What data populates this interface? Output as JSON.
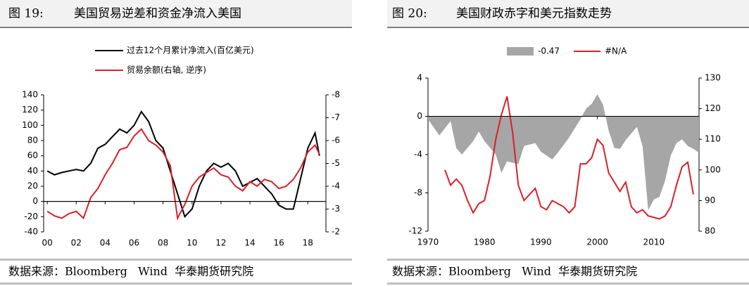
{
  "chart_data": [
    {
      "type": "line",
      "label": "图 19:",
      "title": "美国贸易逆差和资金净流入美国",
      "source": "数据来源：Bloomberg   Wind  华泰期货研究院",
      "xlim": [
        1999.75,
        2019.25
      ],
      "xticks": [
        {
          "value": 2000,
          "label": "00"
        },
        {
          "value": 2002,
          "label": "02"
        },
        {
          "value": 2004,
          "label": "04"
        },
        {
          "value": 2006,
          "label": "06"
        },
        {
          "value": 2008,
          "label": "08"
        },
        {
          "value": 2010,
          "label": "10"
        },
        {
          "value": 2012,
          "label": "12"
        },
        {
          "value": 2014,
          "label": "14"
        },
        {
          "value": 2016,
          "label": "16"
        },
        {
          "value": 2018,
          "label": "18"
        }
      ],
      "ylim": [
        -40,
        140
      ],
      "yticks": [
        -40,
        -20,
        0,
        20,
        40,
        60,
        80,
        100,
        120,
        140
      ],
      "y2lim": [
        -2,
        -8
      ],
      "y2ticks": [
        -8,
        -7,
        -6,
        -5,
        -4,
        -3,
        -2
      ],
      "grid": false,
      "series": [
        {
          "name": "过去12个月累计净流入(百亿美元)",
          "color": "#000000",
          "axis": "y",
          "x": [
            2000,
            2000.5,
            2001,
            2001.5,
            2002,
            2002.5,
            2003,
            2003.5,
            2004,
            2004.5,
            2005,
            2005.5,
            2006,
            2006.5,
            2007,
            2007.5,
            2008,
            2008.5,
            2009,
            2009.5,
            2010,
            2010.5,
            2011,
            2011.5,
            2012,
            2012.5,
            2013,
            2013.5,
            2014,
            2014.5,
            2015,
            2015.5,
            2016,
            2016.5,
            2017,
            2017.5,
            2018,
            2018.5,
            2018.8
          ],
          "values": [
            40,
            35,
            38,
            40,
            42,
            40,
            50,
            70,
            75,
            85,
            95,
            90,
            100,
            118,
            105,
            80,
            70,
            40,
            10,
            -20,
            -10,
            20,
            40,
            50,
            45,
            50,
            40,
            20,
            25,
            30,
            20,
            10,
            -5,
            -10,
            -10,
            30,
            70,
            90,
            60
          ]
        },
        {
          "name": "贸易余额(右轴, 逆序)",
          "color": "#d9202a",
          "axis": "y2",
          "x": [
            2000,
            2000.5,
            2001,
            2001.5,
            2002,
            2002.5,
            2003,
            2003.5,
            2004,
            2004.5,
            2005,
            2005.5,
            2006,
            2006.5,
            2007,
            2007.5,
            2008,
            2008.5,
            2009,
            2009.5,
            2010,
            2010.5,
            2011,
            2011.5,
            2012,
            2012.5,
            2013,
            2013.5,
            2014,
            2014.5,
            2015,
            2015.5,
            2016,
            2016.5,
            2017,
            2017.5,
            2018,
            2018.5,
            2018.8
          ],
          "values": [
            -2.9,
            -2.7,
            -2.6,
            -2.8,
            -2.9,
            -2.6,
            -3.5,
            -3.9,
            -4.5,
            -5.0,
            -5.6,
            -5.7,
            -6.2,
            -6.5,
            -6.0,
            -5.8,
            -5.5,
            -4.9,
            -2.6,
            -3.2,
            -4.0,
            -4.4,
            -4.6,
            -4.8,
            -4.5,
            -4.4,
            -4.0,
            -3.8,
            -4.2,
            -4.0,
            -4.3,
            -4.2,
            -3.9,
            -4.0,
            -4.3,
            -4.8,
            -5.5,
            -5.8,
            -5.4
          ]
        }
      ]
    },
    {
      "type": "line",
      "label": "图 20:",
      "title": "美国财政赤字和美元指数走势",
      "source": "数据来源：Bloomberg   Wind  华泰期货研究院",
      "xlim": [
        1970,
        2018
      ],
      "xticks": [
        1970,
        1980,
        1990,
        2000,
        2010
      ],
      "ylim": [
        -12,
        4
      ],
      "yticks": [
        -12,
        -8,
        -4,
        0,
        4
      ],
      "y2lim": [
        80,
        130
      ],
      "y2ticks": [
        80,
        90,
        100,
        110,
        120,
        130
      ],
      "grid": false,
      "series": [
        {
          "name": "-0.47",
          "color": "#a6a6a6",
          "axis": "y",
          "type": "area",
          "x": [
            1970,
            1972,
            1974,
            1975,
            1976,
            1978,
            1979,
            1980,
            1982,
            1983,
            1984,
            1986,
            1987,
            1989,
            1990,
            1992,
            1993,
            1995,
            1997,
            1998,
            1999,
            2000,
            2001,
            2002,
            2003,
            2004,
            2005,
            2006,
            2007,
            2008,
            2009,
            2010,
            2011,
            2012,
            2013,
            2014,
            2015,
            2016,
            2017,
            2018
          ],
          "values": [
            -0.3,
            -2,
            -0.5,
            -3.3,
            -4.0,
            -2.6,
            -1.6,
            -2.6,
            -4,
            -5.9,
            -4.7,
            -5,
            -3.1,
            -2.8,
            -3.7,
            -4.5,
            -3.8,
            -2.2,
            -0.3,
            0.8,
            1.3,
            2.3,
            1.2,
            -1.5,
            -3.3,
            -3.4,
            -2.5,
            -1.8,
            -1.1,
            -3.1,
            -9.8,
            -8.7,
            -8.4,
            -6.7,
            -4.1,
            -2.8,
            -2.4,
            -3.1,
            -3.4,
            -3.8
          ]
        },
        {
          "name": "#N/A",
          "color": "#d9202a",
          "axis": "y2",
          "x": [
            1973,
            1974,
            1975,
            1976,
            1977,
            1978,
            1979,
            1980,
            1981,
            1982,
            1983,
            1984,
            1985,
            1986,
            1987,
            1988,
            1989,
            1990,
            1991,
            1992,
            1993,
            1994,
            1995,
            1996,
            1997,
            1998,
            1999,
            2000,
            2001,
            2002,
            2003,
            2004,
            2005,
            2006,
            2007,
            2008,
            2009,
            2010,
            2011,
            2012,
            2013,
            2014,
            2015,
            2016,
            2017
          ],
          "values": [
            100,
            95,
            97,
            95,
            90,
            86,
            89,
            90,
            98,
            110,
            118,
            124,
            112,
            95,
            90,
            92,
            94,
            88,
            87,
            90,
            89,
            88,
            86,
            88,
            102,
            102,
            104,
            110,
            108,
            99,
            96,
            93,
            96,
            88,
            86,
            87,
            85,
            84.5,
            84,
            85,
            88,
            95,
            101,
            102.5,
            92
          ]
        }
      ]
    }
  ]
}
